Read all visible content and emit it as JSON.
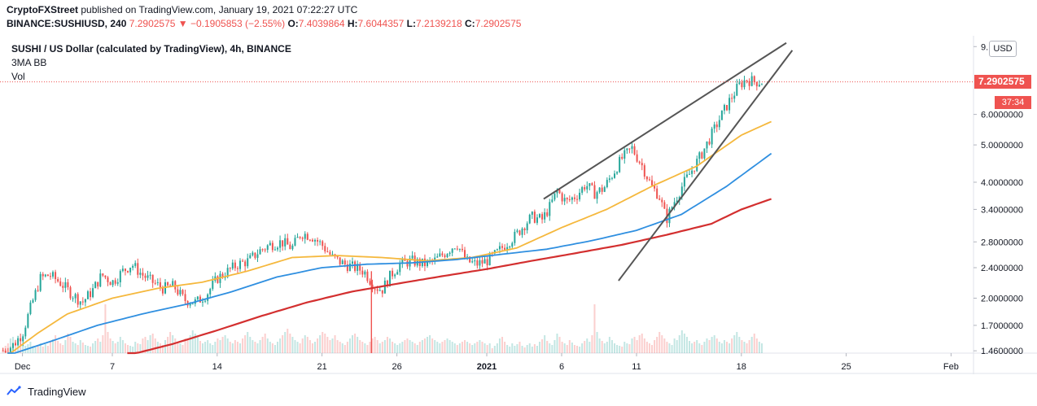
{
  "header": {
    "publisher": "CryptoFXStreet",
    "published_text": " published on TradingView.com, January 19, 2021 07:22:27 UTC",
    "symbol": "BINANCE:SUSHIUSD, 240",
    "change": "7.2902575 ▼ −0.1905853 (−2.55%)",
    "o_label": "O:",
    "o_value": "7.4039864",
    "h_label": "H:",
    "h_value": "7.6044357",
    "l_label": "L:",
    "l_value": "7.2139218",
    "c_label": "C:",
    "c_value": "7.2902575"
  },
  "legend": {
    "title": "SUSHI / US Dollar (calculated by TradingView), 4h, BINANCE",
    "indicator": "3MA BB",
    "volume": "Vol"
  },
  "price_scale": {
    "currency": "USD",
    "last_price": "7.2902575",
    "countdown": "37:34"
  },
  "branding": {
    "name": "TradingView"
  },
  "colors": {
    "up": "#26a69a",
    "down": "#ef5350",
    "ma_fast": "#f5b83d",
    "ma_mid": "#2f8fe0",
    "ma_slow": "#d32f2f",
    "trendline": "#555555"
  },
  "chart_data": {
    "type": "candlestick",
    "scale": "log",
    "ylim": [
      1.44,
      9.6
    ],
    "y_ticks": [
      {
        "value": 9.0,
        "label": "9."
      },
      {
        "value": 6.0,
        "label": "6.0000000"
      },
      {
        "value": 5.0,
        "label": "5.0000000"
      },
      {
        "value": 4.0,
        "label": "4.0000000"
      },
      {
        "value": 3.4,
        "label": "3.4000000"
      },
      {
        "value": 2.8,
        "label": "2.8000000"
      },
      {
        "value": 2.4,
        "label": "2.4000000"
      },
      {
        "value": 2.0,
        "label": "2.0000000"
      },
      {
        "value": 1.7,
        "label": "1.7000000"
      },
      {
        "value": 1.46,
        "label": "1.4600000"
      }
    ],
    "x_ticks": [
      {
        "day": 1,
        "label": "Dec"
      },
      {
        "day": 7,
        "label": "7"
      },
      {
        "day": 14,
        "label": "14"
      },
      {
        "day": 21,
        "label": "21"
      },
      {
        "day": 26,
        "label": "26"
      },
      {
        "day": 32,
        "label": "2021"
      },
      {
        "day": 37,
        "label": "6"
      },
      {
        "day": 42,
        "label": "11"
      },
      {
        "day": 49,
        "label": "18"
      },
      {
        "day": 56,
        "label": "25"
      },
      {
        "day": 63,
        "label": "Feb"
      }
    ],
    "xlim": [
      -0.5,
      64.5
    ],
    "last_day": 50.5,
    "price_path": [
      [
        -0.5,
        1.45
      ],
      [
        0.3,
        1.5
      ],
      [
        1.0,
        1.62
      ],
      [
        1.6,
        1.92
      ],
      [
        2.2,
        2.25
      ],
      [
        2.8,
        2.3
      ],
      [
        3.5,
        2.2
      ],
      [
        4.3,
        2.05
      ],
      [
        5.0,
        1.95
      ],
      [
        5.7,
        2.1
      ],
      [
        6.3,
        2.3
      ],
      [
        7.0,
        2.2
      ],
      [
        7.7,
        2.35
      ],
      [
        8.3,
        2.45
      ],
      [
        9.0,
        2.3
      ],
      [
        9.7,
        2.2
      ],
      [
        10.4,
        2.12
      ],
      [
        11.1,
        2.15
      ],
      [
        11.8,
        1.98
      ],
      [
        12.6,
        1.95
      ],
      [
        13.3,
        2.05
      ],
      [
        14.0,
        2.25
      ],
      [
        14.7,
        2.35
      ],
      [
        15.4,
        2.45
      ],
      [
        16.1,
        2.5
      ],
      [
        16.8,
        2.65
      ],
      [
        17.5,
        2.75
      ],
      [
        18.3,
        2.8
      ],
      [
        19.0,
        2.7
      ],
      [
        19.6,
        2.95
      ],
      [
        20.3,
        2.9
      ],
      [
        21.0,
        2.75
      ],
      [
        21.7,
        2.55
      ],
      [
        22.5,
        2.45
      ],
      [
        23.2,
        2.4
      ],
      [
        23.8,
        2.35
      ],
      [
        24.5,
        2.15
      ],
      [
        25.0,
        2.1
      ],
      [
        25.6,
        2.3
      ],
      [
        26.2,
        2.45
      ],
      [
        27.0,
        2.5
      ],
      [
        27.8,
        2.45
      ],
      [
        28.5,
        2.5
      ],
      [
        29.2,
        2.62
      ],
      [
        30.0,
        2.78
      ],
      [
        30.6,
        2.5
      ],
      [
        31.3,
        2.45
      ],
      [
        32.0,
        2.5
      ],
      [
        32.6,
        2.6
      ],
      [
        33.2,
        2.75
      ],
      [
        33.9,
        2.9
      ],
      [
        34.5,
        3.1
      ],
      [
        35.0,
        3.25
      ],
      [
        35.7,
        3.2
      ],
      [
        36.2,
        3.45
      ],
      [
        36.7,
        3.8
      ],
      [
        37.3,
        3.55
      ],
      [
        38.0,
        3.7
      ],
      [
        38.6,
        3.95
      ],
      [
        39.2,
        3.75
      ],
      [
        39.8,
        3.85
      ],
      [
        40.4,
        4.2
      ],
      [
        41.0,
        4.6
      ],
      [
        41.7,
        4.9
      ],
      [
        42.4,
        4.4
      ],
      [
        43.0,
        3.9
      ],
      [
        43.5,
        3.7
      ],
      [
        44.0,
        3.2
      ],
      [
        44.5,
        3.55
      ],
      [
        45.1,
        3.95
      ],
      [
        45.7,
        4.3
      ],
      [
        46.3,
        4.7
      ],
      [
        47.0,
        5.3
      ],
      [
        47.6,
        5.9
      ],
      [
        48.2,
        6.5
      ],
      [
        48.8,
        7.1
      ],
      [
        49.3,
        7.4
      ],
      [
        49.9,
        7.3
      ],
      [
        50.5,
        7.29
      ]
    ],
    "series": [
      {
        "name": "",
        "points": [
          [
            0,
            1.42
          ],
          [
            2,
            1.62
          ],
          [
            4,
            1.82
          ],
          [
            7,
            2.0
          ],
          [
            10,
            2.12
          ],
          [
            13,
            2.2
          ],
          [
            16,
            2.35
          ],
          [
            19,
            2.55
          ],
          [
            22,
            2.58
          ],
          [
            25,
            2.55
          ],
          [
            28,
            2.5
          ],
          [
            31,
            2.55
          ],
          [
            34,
            2.7
          ],
          [
            37,
            3.05
          ],
          [
            40,
            3.4
          ],
          [
            43,
            3.9
          ],
          [
            46,
            4.4
          ],
          [
            49,
            5.3
          ],
          [
            51,
            5.75
          ]
        ]
      },
      {
        "name": "",
        "points": [
          [
            0,
            1.42
          ],
          [
            3,
            1.55
          ],
          [
            6,
            1.7
          ],
          [
            9,
            1.82
          ],
          [
            12,
            1.93
          ],
          [
            15,
            2.08
          ],
          [
            18,
            2.27
          ],
          [
            21,
            2.4
          ],
          [
            24,
            2.45
          ],
          [
            27,
            2.47
          ],
          [
            30,
            2.52
          ],
          [
            33,
            2.6
          ],
          [
            36,
            2.68
          ],
          [
            39,
            2.82
          ],
          [
            42,
            3.0
          ],
          [
            45,
            3.3
          ],
          [
            48,
            3.9
          ],
          [
            51,
            4.75
          ]
        ]
      },
      {
        "name": "",
        "points": [
          [
            8,
            1.42
          ],
          [
            11,
            1.52
          ],
          [
            14,
            1.65
          ],
          [
            17,
            1.8
          ],
          [
            20,
            1.95
          ],
          [
            23,
            2.08
          ],
          [
            26,
            2.18
          ],
          [
            29,
            2.28
          ],
          [
            32,
            2.38
          ],
          [
            35,
            2.5
          ],
          [
            38,
            2.62
          ],
          [
            41,
            2.75
          ],
          [
            44,
            2.92
          ],
          [
            47,
            3.12
          ],
          [
            49,
            3.4
          ],
          [
            51,
            3.62
          ]
        ]
      }
    ],
    "trendlines": [
      {
        "from": [
          35.8,
          3.62
        ],
        "to": [
          52.0,
          9.2
        ]
      },
      {
        "from": [
          40.8,
          2.22
        ],
        "to": [
          52.4,
          8.8
        ]
      }
    ],
    "volume_max": 60,
    "volume": [
      6,
      9,
      12,
      18,
      20,
      14,
      10,
      8,
      12,
      9,
      11,
      14,
      9,
      7,
      10,
      12,
      8,
      11,
      9,
      14,
      17,
      22,
      15,
      12,
      10,
      16,
      24,
      20,
      14,
      12,
      10,
      16,
      13,
      10,
      9,
      8,
      12,
      15,
      18,
      14,
      22,
      60,
      26,
      18,
      15,
      12,
      14,
      20,
      16,
      12,
      10,
      9,
      8,
      14,
      12,
      11,
      18,
      20,
      16,
      22,
      24,
      18,
      14,
      12,
      10,
      16,
      20,
      26,
      22,
      18,
      14,
      12,
      10,
      18,
      16,
      22,
      28,
      24,
      20,
      15,
      12,
      14,
      16,
      12,
      10,
      14,
      18,
      16,
      20,
      22,
      18,
      14,
      12,
      16,
      14,
      12,
      18,
      22,
      26,
      20,
      16,
      14,
      12,
      16,
      20,
      24,
      18,
      14,
      12,
      10,
      14,
      18,
      22,
      26,
      30,
      24,
      20,
      16,
      14,
      12,
      18,
      22,
      20,
      16,
      12,
      14,
      18,
      22,
      26,
      24,
      20,
      16,
      18,
      22,
      16,
      14,
      12,
      10,
      14,
      18,
      22,
      24,
      20,
      16,
      14,
      12,
      10,
      14,
      18,
      20,
      16,
      12,
      14,
      16,
      20,
      18,
      14,
      12,
      10,
      12,
      14,
      16,
      18,
      16,
      14,
      12,
      10,
      14,
      16,
      18,
      20,
      22,
      18,
      16,
      14,
      12,
      14,
      16,
      18,
      16,
      14,
      12,
      10,
      12,
      14,
      16,
      14,
      12,
      10,
      12,
      14,
      16,
      14,
      12,
      10,
      12
    ]
  }
}
